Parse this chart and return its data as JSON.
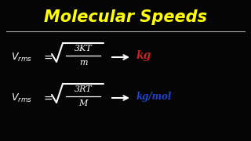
{
  "title": "Molecular Speeds",
  "title_color": "#FFFF00",
  "title_fontsize": 15,
  "background_color": "#050505",
  "line_color": "#AAAAAA",
  "formula_color": "#FFFFFF",
  "kg_color": "#CC2222",
  "kgmol_color": "#2244CC",
  "eq1_num": "3KT",
  "eq1_den": "m",
  "eq1_unit": "kg",
  "eq2_num": "3RT",
  "eq2_den": "M",
  "eq2_unit": "kg/mol",
  "figw": 3.2,
  "figh": 1.8,
  "dpi": 100
}
